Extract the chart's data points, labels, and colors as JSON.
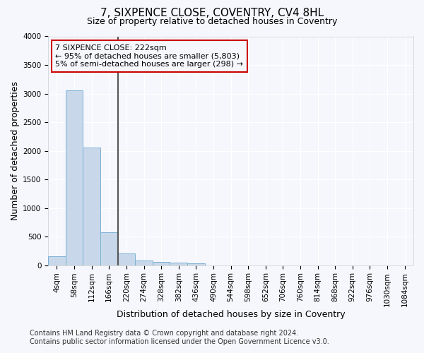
{
  "title": "7, SIXPENCE CLOSE, COVENTRY, CV4 8HL",
  "subtitle": "Size of property relative to detached houses in Coventry",
  "xlabel": "Distribution of detached houses by size in Coventry",
  "ylabel": "Number of detached properties",
  "footer_line1": "Contains HM Land Registry data © Crown copyright and database right 2024.",
  "footer_line2": "Contains public sector information licensed under the Open Government Licence v3.0.",
  "annotation_line1": "7 SIXPENCE CLOSE: 222sqm",
  "annotation_line2": "← 95% of detached houses are smaller (5,803)",
  "annotation_line3": "5% of semi-detached houses are larger (298) →",
  "bar_categories": [
    "4sqm",
    "58sqm",
    "112sqm",
    "166sqm",
    "220sqm",
    "274sqm",
    "328sqm",
    "382sqm",
    "436sqm",
    "490sqm",
    "544sqm",
    "598sqm",
    "652sqm",
    "706sqm",
    "760sqm",
    "814sqm",
    "868sqm",
    "922sqm",
    "976sqm",
    "1030sqm",
    "1084sqm"
  ],
  "bar_values": [
    150,
    3060,
    2060,
    570,
    200,
    80,
    55,
    45,
    30,
    0,
    0,
    0,
    0,
    0,
    0,
    0,
    0,
    0,
    0,
    0,
    0
  ],
  "bar_color": "#c8d8ea",
  "bar_edge_color": "#7ab0d4",
  "vline_color": "#555555",
  "vline_x_index": 4,
  "ylim": [
    0,
    4000
  ],
  "yticks": [
    0,
    500,
    1000,
    1500,
    2000,
    2500,
    3000,
    3500,
    4000
  ],
  "fig_bg_color": "#f5f7fc",
  "plot_bg_color": "#f5f7fc",
  "grid_color": "#ffffff",
  "annotation_box_edge": "#cc0000",
  "title_fontsize": 11,
  "subtitle_fontsize": 9,
  "axis_label_fontsize": 9,
  "tick_fontsize": 7.5,
  "annotation_fontsize": 8,
  "footer_fontsize": 7
}
